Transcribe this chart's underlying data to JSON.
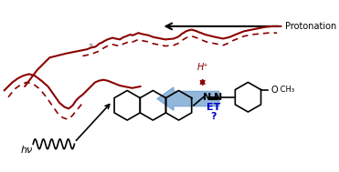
{
  "bg_color": "#ffffff",
  "protonation_text": "Protonation",
  "hv_text": "hν",
  "ET_text": "ET",
  "question_text": "?",
  "Hplus_text": "H⁺",
  "asterisk_text": "*",
  "dark_red": "#8B0000",
  "dark_red_dashed": "#8B0000",
  "blue_arrow_color": "#6699CC",
  "ET_color": "#0000CC",
  "Hplus_arrow_color": "#8B0000",
  "black": "#000000"
}
